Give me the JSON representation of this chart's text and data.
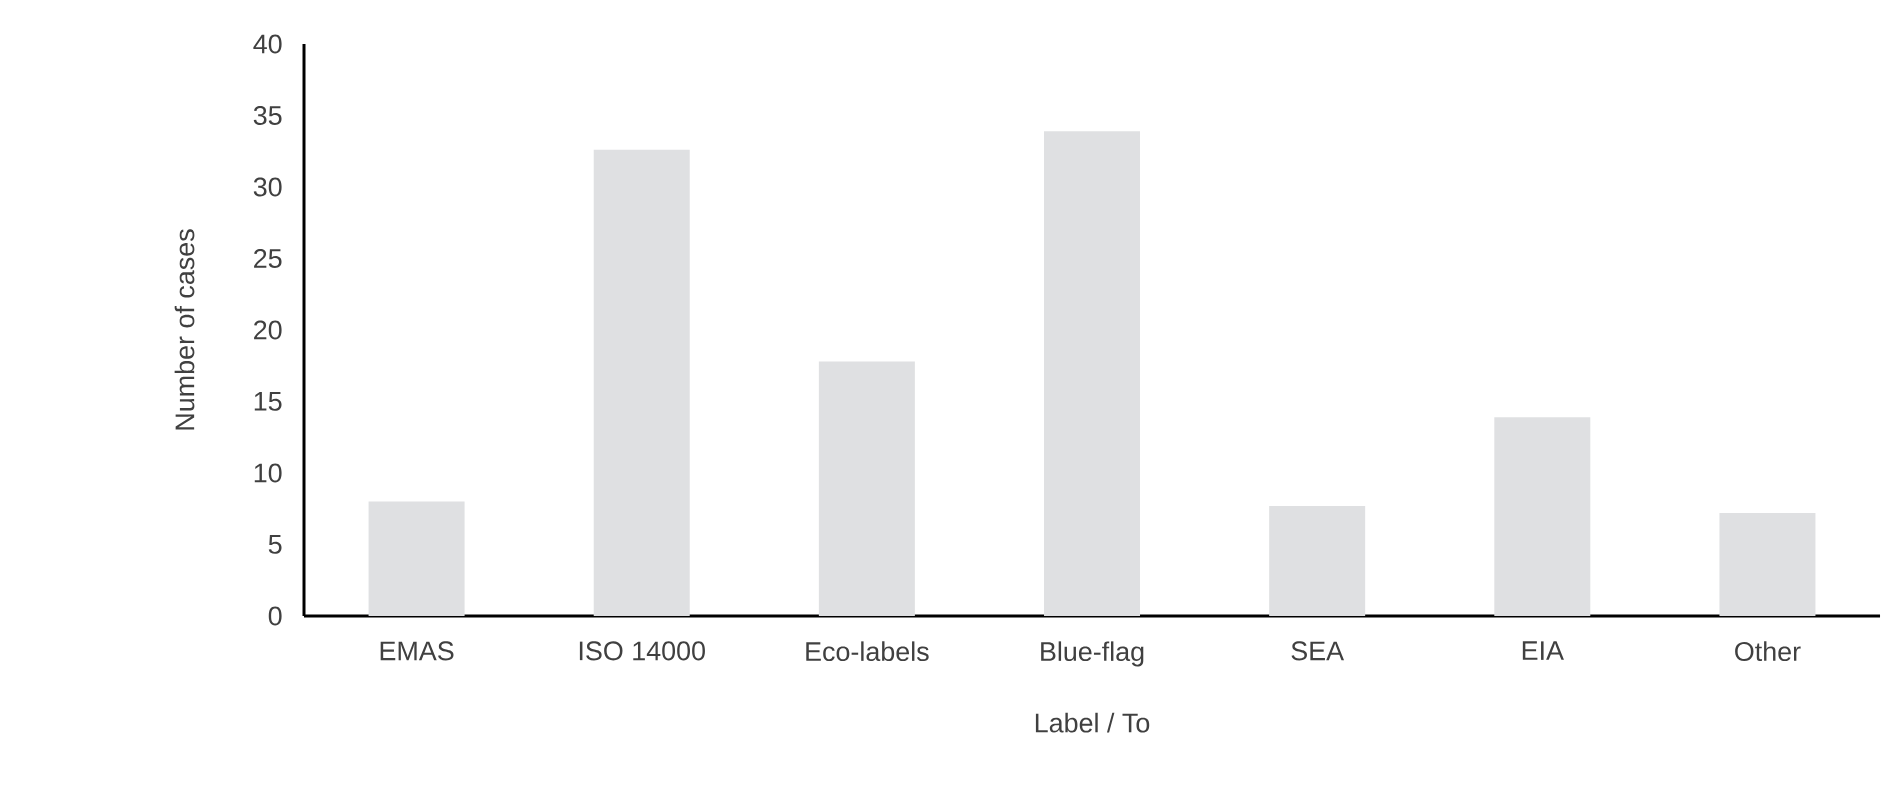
{
  "chart_data": {
    "type": "bar",
    "categories": [
      "EMAS",
      "ISO 14000",
      "Eco-labels",
      "Blue-flag",
      "SEA",
      "EIA",
      "Other"
    ],
    "values": [
      8,
      32.6,
      17.8,
      33.9,
      7.7,
      13.9,
      7.2
    ],
    "color": "#dfe0e2",
    "xlabel": "Label / To",
    "ylabel": "Number of cases",
    "ylim": [
      0,
      40
    ],
    "yticks": [
      0,
      5,
      10,
      15,
      20,
      25,
      30,
      35,
      40
    ],
    "grid": false
  }
}
